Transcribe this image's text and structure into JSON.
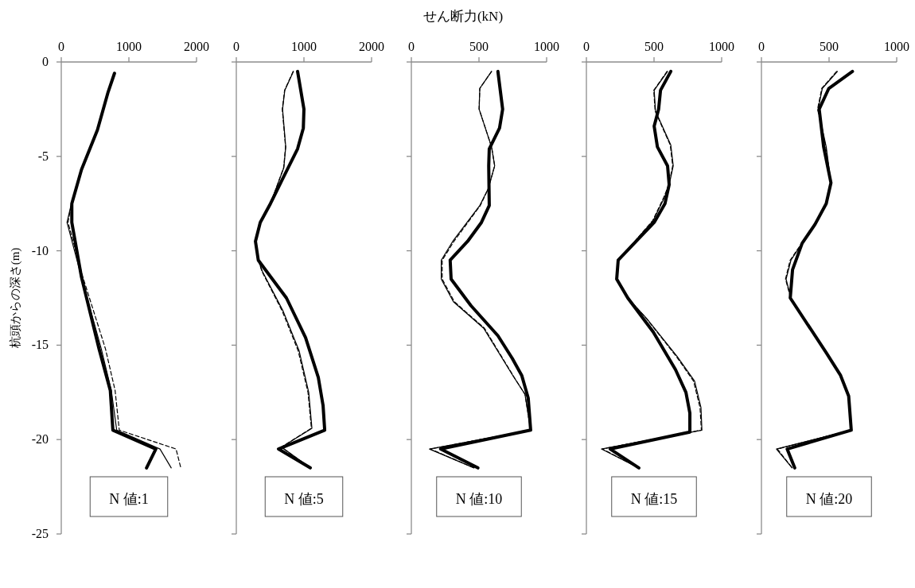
{
  "chart_data": [
    {
      "type": "line",
      "ylabel": "杭頭からの深さ(m)",
      "xlim": [
        0,
        2000
      ],
      "xticks": [
        0,
        1000,
        2000
      ],
      "ylim": [
        -25,
        0
      ],
      "yticks": [
        0,
        -5,
        -10,
        -15,
        -20,
        -25
      ],
      "annotations": [
        "N 値:1"
      ],
      "series": [
        {
          "color": "#000000",
          "line_style": "solid",
          "x": [
            787,
            692,
            535,
            299,
            156,
            156,
            299,
            559,
            725,
            763,
            1398,
            1261
          ],
          "values": [
            -0.6,
            -1.6,
            -3.6,
            -5.7,
            -7.5,
            -8.5,
            -11.4,
            -15.2,
            -17.4,
            -19.5,
            -20.5,
            -21.5
          ]
        },
        {
          "color": "#000000",
          "line_style": "solid",
          "x": [
            787,
            692,
            535,
            299,
            150,
            85,
            299,
            592,
            740,
            820,
            1460,
            1626
          ],
          "values": [
            -0.6,
            -1.6,
            -3.6,
            -5.7,
            -7.5,
            -8.5,
            -11.4,
            -15.2,
            -17.4,
            -19.5,
            -20.5,
            -21.5
          ]
        },
        {
          "color": "#000000",
          "line_style": "dashed",
          "x": [
            787,
            692,
            535,
            299,
            150,
            100,
            320,
            654,
            796,
            858,
            1697,
            1768
          ],
          "values": [
            -0.6,
            -1.6,
            -3.6,
            -5.7,
            -7.5,
            -8.5,
            -11.4,
            -15.2,
            -17.4,
            -19.5,
            -20.5,
            -21.5
          ]
        }
      ]
    },
    {
      "type": "line",
      "xlim": [
        0,
        2000
      ],
      "xticks": [
        0,
        1000,
        2000
      ],
      "ylim": [
        -25,
        0
      ],
      "yticks": [
        0,
        -5,
        -10,
        -15,
        -20,
        -25
      ],
      "tick_labels": "x",
      "annotations": [
        "N 値:5"
      ],
      "series": [
        {
          "color": "#000000",
          "line_style": "solid",
          "x": [
            906,
            1000,
            991,
            906,
            670,
            505,
            354,
            283,
            325,
            741,
            1024,
            1212,
            1283,
            1307,
            623,
            1094
          ],
          "values": [
            -0.5,
            -2.5,
            -3.5,
            -4.6,
            -6.3,
            -7.5,
            -8.5,
            -9.5,
            -10.5,
            -12.5,
            -14.6,
            -16.7,
            -18.2,
            -19.5,
            -20.5,
            -21.5
          ]
        },
        {
          "color": "#000000",
          "line_style": "solid",
          "x": [
            844,
            717,
            684,
            731,
            703,
            505,
            354,
            283,
            325,
            387,
            693,
            929,
            1071,
            1118,
            670,
            1094
          ],
          "values": [
            -0.5,
            -1.5,
            -2.5,
            -4.5,
            -5.6,
            -7.5,
            -8.5,
            -9.5,
            -10.5,
            -11.1,
            -13.2,
            -15.3,
            -17.5,
            -19.4,
            -20.4,
            -21.5
          ]
        },
        {
          "color": "#000000",
          "line_style": "dashed",
          "x": [
            840,
            714,
            680,
            728,
            700,
            505,
            354,
            283,
            325,
            380,
            680,
            915,
            1060,
            1110,
            665,
            1094
          ],
          "values": [
            -0.5,
            -1.5,
            -2.5,
            -4.5,
            -5.6,
            -7.5,
            -8.5,
            -9.5,
            -10.5,
            -11.1,
            -13.2,
            -15.3,
            -17.5,
            -19.4,
            -20.4,
            -21.5
          ]
        }
      ]
    },
    {
      "type": "line",
      "xlabel": "せん断力(kN)",
      "xlim": [
        0,
        1000
      ],
      "xticks": [
        0,
        500,
        1000
      ],
      "ylim": [
        -25,
        0
      ],
      "yticks": [
        0,
        -5,
        -10,
        -15,
        -20,
        -25
      ],
      "tick_labels": "x",
      "annotations": [
        "N 値:10"
      ],
      "series": [
        {
          "color": "#000000",
          "line_style": "solid",
          "x": [
            640,
            675,
            652,
            576,
            572,
            576,
            518,
            416,
            287,
            294,
            440,
            640,
            746,
            816,
            864,
            882,
            216,
            492
          ],
          "values": [
            -0.5,
            -2.5,
            -3.5,
            -4.6,
            -5.5,
            -7.6,
            -8.5,
            -9.5,
            -10.5,
            -11.5,
            -12.9,
            -14.5,
            -15.7,
            -16.6,
            -17.8,
            -19.5,
            -20.5,
            -21.5
          ]
        },
        {
          "color": "#000000",
          "line_style": "solid",
          "x": [
            593,
            506,
            501,
            593,
            616,
            569,
            506,
            306,
            221,
            221,
            311,
            534,
            758,
            840,
            882,
            134,
            464
          ],
          "values": [
            -0.5,
            -1.4,
            -2.5,
            -4.5,
            -5.5,
            -6.7,
            -7.6,
            -9.5,
            -10.5,
            -11.5,
            -12.7,
            -14.1,
            -16.7,
            -17.6,
            -19.5,
            -20.5,
            -21.5
          ]
        },
        {
          "color": "#000000",
          "line_style": "dashed",
          "x": [
            593,
            506,
            501,
            593,
            616,
            569,
            510,
            315,
            228,
            228,
            318,
            540,
            760,
            840,
            882,
            140,
            464
          ],
          "values": [
            -0.5,
            -1.4,
            -2.5,
            -4.5,
            -5.5,
            -6.7,
            -7.6,
            -9.5,
            -10.5,
            -11.5,
            -12.7,
            -14.1,
            -16.7,
            -17.6,
            -19.5,
            -20.5,
            -21.5
          ]
        }
      ]
    },
    {
      "type": "line",
      "xlim": [
        0,
        1000
      ],
      "xticks": [
        0,
        500,
        1000
      ],
      "ylim": [
        -25,
        0
      ],
      "yticks": [
        0,
        -5,
        -10,
        -15,
        -20,
        -25
      ],
      "tick_labels": "x",
      "annotations": [
        "N 値:15"
      ],
      "series": [
        {
          "color": "#000000",
          "line_style": "solid",
          "x": [
            624,
            548,
            534,
            501,
            525,
            600,
            612,
            581,
            501,
            235,
            224,
            306,
            494,
            659,
            736,
            765,
            765,
            176,
            388
          ],
          "values": [
            -0.5,
            -1.5,
            -2.5,
            -3.4,
            -4.5,
            -5.5,
            -6.5,
            -7.5,
            -8.5,
            -10.5,
            -11.5,
            -12.5,
            -14.3,
            -16.3,
            -17.5,
            -18.6,
            -19.6,
            -20.5,
            -21.5
          ]
        },
        {
          "color": "#000000",
          "line_style": "solid",
          "x": [
            600,
            501,
            511,
            624,
            642,
            612,
            576,
            494,
            235,
            224,
            306,
            447,
            671,
            800,
            847,
            854,
            111,
            388
          ],
          "values": [
            -0.5,
            -1.5,
            -2.6,
            -4.4,
            -5.5,
            -6.5,
            -7.2,
            -8.4,
            -10.5,
            -11.5,
            -12.5,
            -13.6,
            -15.6,
            -16.9,
            -18.3,
            -19.5,
            -20.5,
            -21.5
          ]
        },
        {
          "color": "#000000",
          "line_style": "dashed",
          "x": [
            596,
            498,
            508,
            620,
            638,
            610,
            570,
            490,
            238,
            226,
            306,
            445,
            665,
            792,
            840,
            850,
            118,
            388
          ],
          "values": [
            -0.5,
            -1.5,
            -2.6,
            -4.4,
            -5.5,
            -6.5,
            -7.2,
            -8.4,
            -10.5,
            -11.5,
            -12.5,
            -13.6,
            -15.6,
            -16.9,
            -18.3,
            -19.5,
            -20.5,
            -21.5
          ]
        }
      ]
    },
    {
      "type": "line",
      "xlim": [
        0,
        1000
      ],
      "xticks": [
        0,
        500,
        1000
      ],
      "ylim": [
        -25,
        0
      ],
      "yticks": [
        0,
        -5,
        -10,
        -15,
        -20,
        -25
      ],
      "tick_labels": "x",
      "annotations": [
        "N 値:20"
      ],
      "series": [
        {
          "color": "#000000",
          "line_style": "solid",
          "x": [
            673,
            498,
            427,
            460,
            514,
            479,
            396,
            301,
            230,
            213,
            479,
            585,
            645,
            664,
            190,
            246
          ],
          "values": [
            -0.5,
            -1.4,
            -2.5,
            -4.5,
            -6.4,
            -7.5,
            -8.6,
            -9.6,
            -11.0,
            -12.5,
            -15.4,
            -16.6,
            -17.7,
            -19.5,
            -20.5,
            -21.5
          ]
        },
        {
          "color": "#000000",
          "line_style": "solid",
          "x": [
            562,
            450,
            419,
            479,
            514,
            479,
            396,
            301,
            218,
            182,
            218,
            479,
            585,
            645,
            664,
            111,
            227
          ],
          "values": [
            -0.5,
            -1.4,
            -2.5,
            -4.5,
            -6.4,
            -7.5,
            -8.6,
            -9.6,
            -10.5,
            -11.5,
            -12.5,
            -15.4,
            -16.6,
            -17.7,
            -19.5,
            -20.5,
            -21.5
          ]
        },
        {
          "color": "#000000",
          "line_style": "dashed",
          "x": [
            556,
            446,
            415,
            476,
            512,
            477,
            394,
            298,
            212,
            178,
            216,
            476,
            583,
            643,
            664,
            118,
            227
          ],
          "values": [
            -0.5,
            -1.4,
            -2.5,
            -4.5,
            -6.4,
            -7.5,
            -8.6,
            -9.6,
            -10.5,
            -11.5,
            -12.5,
            -15.4,
            -16.6,
            -17.7,
            -19.5,
            -20.5,
            -21.5
          ]
        }
      ]
    }
  ]
}
